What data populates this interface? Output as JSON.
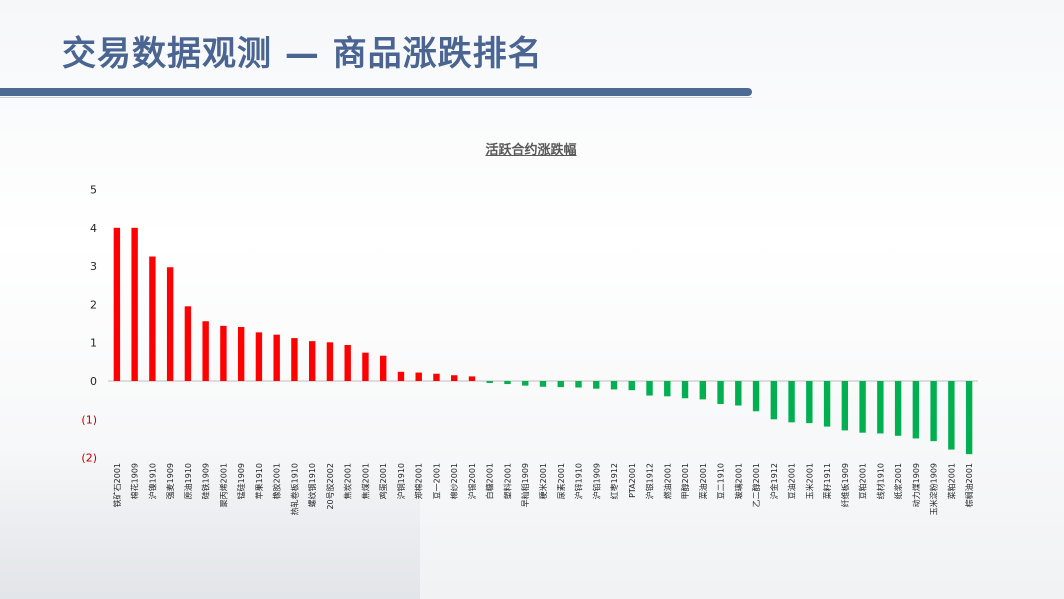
{
  "slide": {
    "title": "交易数据观测 — 商品涨跌排名"
  },
  "colors": {
    "positive": "#ff0000",
    "negative": "#00b050",
    "title": "#4a6591",
    "title_bar": "#4d6a92",
    "negative_tick": "#c00000"
  },
  "chart_data": {
    "type": "bar",
    "title": "活跃合约涨跌幅",
    "xlabel": "",
    "ylabel": "",
    "ylim": [
      -2,
      5
    ],
    "grid": false,
    "yticks": [
      {
        "value": 5,
        "label": "5"
      },
      {
        "value": 4,
        "label": "4"
      },
      {
        "value": 3,
        "label": "3"
      },
      {
        "value": 2,
        "label": "2"
      },
      {
        "value": 1,
        "label": "1"
      },
      {
        "value": 0,
        "label": "0"
      },
      {
        "value": -1,
        "label": "(1)"
      },
      {
        "value": -2,
        "label": "(2)"
      }
    ],
    "categories": [
      "铁矿石2001",
      "棉花1909",
      "沪镍1910",
      "强麦1909",
      "原油1910",
      "硅铁1909",
      "聚丙烯2001",
      "锰硅1909",
      "苹果1910",
      "橡胶2001",
      "热轧卷板1910",
      "螺纹钢1910",
      "20号胶2002",
      "焦炭2001",
      "焦煤2001",
      "鸡蛋2001",
      "沪铜1910",
      "郑棉2001",
      "豆一2001",
      "棉纱2001",
      "沪锡2001",
      "白糖2001",
      "塑料2001",
      "早籼稻1909",
      "粳米2001",
      "尿素2001",
      "沪锌1910",
      "沪铅1909",
      "红枣1912",
      "PTA2001",
      "沪银1912",
      "燃油2001",
      "甲醇2001",
      "菜油2001",
      "豆二1910",
      "玻璃2001",
      "乙二醇2001",
      "沪金1912",
      "豆油2001",
      "玉米2001",
      "菜籽1911",
      "纤维板1909",
      "豆粕2001",
      "线材1910",
      "纸浆2001",
      "动力煤1909",
      "玉米淀粉1909",
      "菜粕2001",
      "棕榈油2001"
    ],
    "values": [
      4.0,
      4.0,
      3.25,
      2.97,
      1.95,
      1.56,
      1.44,
      1.41,
      1.27,
      1.21,
      1.12,
      1.04,
      1.01,
      0.94,
      0.74,
      0.66,
      0.24,
      0.22,
      0.19,
      0.15,
      0.12,
      -0.05,
      -0.08,
      -0.12,
      -0.15,
      -0.16,
      -0.17,
      -0.2,
      -0.22,
      -0.24,
      -0.38,
      -0.4,
      -0.45,
      -0.48,
      -0.6,
      -0.64,
      -0.79,
      -1.0,
      -1.08,
      -1.1,
      -1.19,
      -1.29,
      -1.35,
      -1.37,
      -1.43,
      -1.5,
      -1.57,
      -1.79,
      -1.91
    ]
  }
}
